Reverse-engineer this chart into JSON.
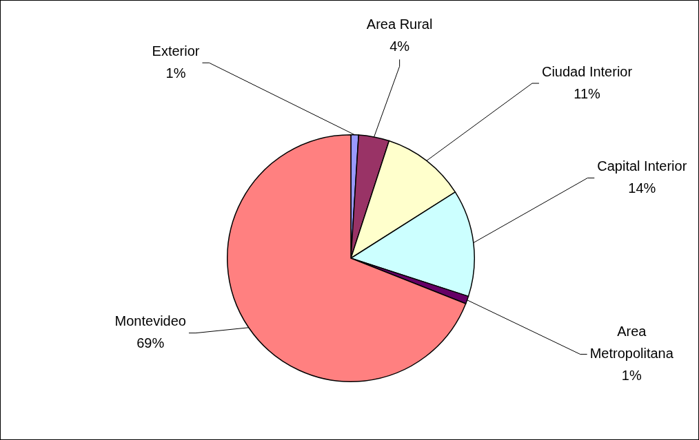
{
  "chart_data": {
    "type": "pie",
    "categories": [
      "Exterior",
      "Area Rural",
      "Ciudad Interior",
      "Capital Interior",
      "Area Metropolitana",
      "Montevideo"
    ],
    "values": [
      1,
      4,
      11,
      14,
      1,
      69
    ],
    "colors": [
      "#9999ff",
      "#993366",
      "#ffffcc",
      "#ccffff",
      "#660066",
      "#ff8080"
    ],
    "value_labels": [
      "1%",
      "4%",
      "11%",
      "14%",
      "1%",
      "69%"
    ]
  }
}
